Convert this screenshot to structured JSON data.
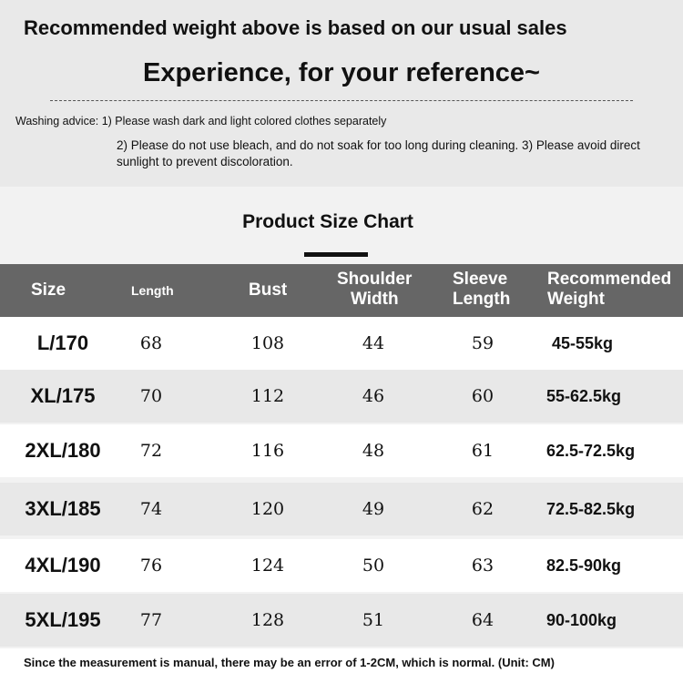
{
  "intro": {
    "line1": "Recommended weight above is based on our usual sales",
    "line2": "Experience, for your reference~"
  },
  "washing": {
    "line1": "Washing advice: 1) Please wash dark and light colored clothes separately",
    "line2": "2) Please do not use bleach, and do not soak for too long during cleaning. 3) Please avoid direct sunlight to prevent discoloration."
  },
  "chart_title": "Product Size Chart",
  "table": {
    "headers": {
      "size": "Size",
      "length": "Length",
      "bust": "Bust",
      "shoulder_1": "Shoulder",
      "shoulder_2": "Width",
      "sleeve_1": "Sleeve",
      "sleeve_2": "Length",
      "weight_1": "Recommended",
      "weight_2": "Weight"
    },
    "rows": [
      {
        "size": "L/170",
        "length": "68",
        "bust": "108",
        "shoulder": "44",
        "sleeve": "59",
        "weight": "45-55kg"
      },
      {
        "size": "XL/175",
        "length": "70",
        "bust": "112",
        "shoulder": "46",
        "sleeve": "60",
        "weight": "55-62.5kg"
      },
      {
        "size": "2XL/180",
        "length": "72",
        "bust": "116",
        "shoulder": "48",
        "sleeve": "61",
        "weight": "62.5-72.5kg"
      },
      {
        "size": "3XL/185",
        "length": "74",
        "bust": "120",
        "shoulder": "49",
        "sleeve": "62",
        "weight": "72.5-82.5kg"
      },
      {
        "size": "4XL/190",
        "length": "76",
        "bust": "124",
        "shoulder": "50",
        "sleeve": "63",
        "weight": "82.5-90kg"
      },
      {
        "size": "5XL/195",
        "length": "77",
        "bust": "128",
        "shoulder": "51",
        "sleeve": "64",
        "weight": "90-100kg"
      }
    ]
  },
  "footer": "Since the measurement is manual, there may be an error of 1-2CM, which is normal. (Unit: CM)",
  "colors": {
    "header_bg": "#666666",
    "row_alt": "#e8e8e8",
    "top_bg": "#e9e9e9"
  }
}
